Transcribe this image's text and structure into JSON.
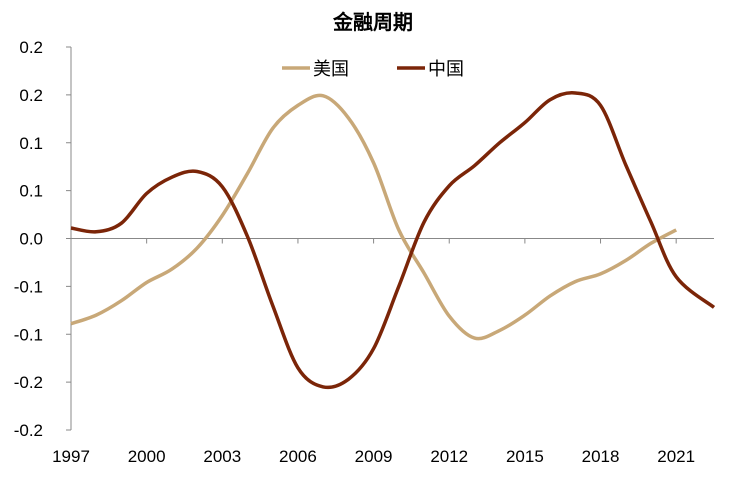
{
  "chart_data": {
    "type": "line",
    "title": "金融周期",
    "xlabel": "",
    "ylabel": "",
    "x_tick_labels": [
      "1997",
      "2000",
      "2003",
      "2006",
      "2009",
      "2012",
      "2015",
      "2018",
      "2021"
    ],
    "y_tick_labels": [
      "0.2",
      "0.2",
      "0.1",
      "0.1",
      "0.0",
      "-0.1",
      "-0.1",
      "-0.2",
      "-0.2"
    ],
    "y_tick_values": [
      0.2,
      0.15,
      0.1,
      0.05,
      0.0,
      -0.05,
      -0.1,
      -0.15,
      -0.2
    ],
    "xlim": [
      1997,
      2022.5
    ],
    "ylim": [
      -0.2,
      0.2
    ],
    "grid": false,
    "legend_position": "top-center",
    "series": [
      {
        "name": "美国",
        "color": "#C8A878",
        "x": [
          1997,
          1998,
          1999,
          2000,
          2001,
          2002,
          2003,
          2004,
          2005,
          2006,
          2007,
          2008,
          2009,
          2010,
          2011,
          2012,
          2013,
          2014,
          2015,
          2016,
          2017,
          2018,
          2019,
          2020,
          2021
        ],
        "y": [
          -0.089,
          -0.08,
          -0.065,
          -0.046,
          -0.032,
          -0.01,
          0.024,
          0.068,
          0.115,
          0.139,
          0.149,
          0.126,
          0.079,
          0.009,
          -0.036,
          -0.081,
          -0.104,
          -0.096,
          -0.08,
          -0.06,
          -0.045,
          -0.037,
          -0.023,
          -0.005,
          0.009
        ]
      },
      {
        "name": "中国",
        "color": "#7B2508",
        "x": [
          1997,
          1998,
          1999,
          2000,
          2001,
          2002,
          2003,
          2004,
          2005,
          2006,
          2007,
          2008,
          2009,
          2010,
          2011,
          2012,
          2013,
          2014,
          2015,
          2016,
          2017,
          2018,
          2019,
          2020,
          2021,
          2022.5
        ],
        "y": [
          0.011,
          0.007,
          0.016,
          0.047,
          0.064,
          0.07,
          0.054,
          0.002,
          -0.07,
          -0.135,
          -0.155,
          -0.147,
          -0.115,
          -0.05,
          0.017,
          0.055,
          0.076,
          0.1,
          0.121,
          0.145,
          0.152,
          0.139,
          0.077,
          0.017,
          -0.04,
          -0.072
        ]
      }
    ]
  }
}
